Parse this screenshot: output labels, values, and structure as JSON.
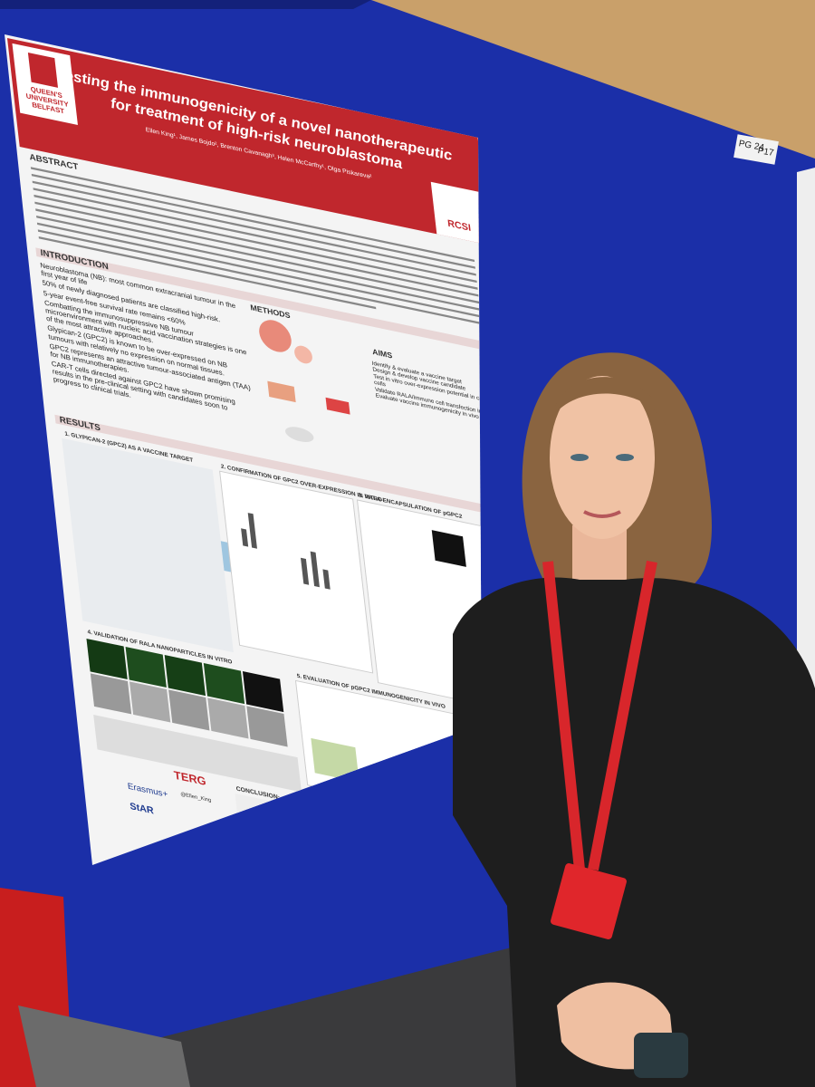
{
  "poster": {
    "institution_left": "QUEEN'S UNIVERSITY BELFAST",
    "title": [
      "Testing the immunogenicity of a novel nanotherapeutic",
      "for treatment of high-risk neuroblastoma"
    ],
    "authors": "Ellen King¹, James Bojdo², Brenton Cavanagh³, Helen McCarthy¹, Olga Piskareva²",
    "institution_right": "RCSI",
    "sections": {
      "abstract": "ABSTRACT",
      "introduction": "INTRODUCTION",
      "methods": "METHODS",
      "aims": "AIMS",
      "results": "RESULTS"
    },
    "intro_points": [
      "Neuroblastoma (NB): most common extracranial tumour in the first year of life",
      "50% of newly diagnosed patients are classified high-risk.",
      "5-year event-free survival rate remains <60%",
      "Combatting the immunosuppressive NB tumour microenvironment with nucleic acid vaccination strategies is one of the most attractive approaches.",
      "Glypican-2 (GPC2) is known to be over-expressed on NB tumours with relatively no expression on normal tissues.",
      "GPC2 represents an attractive tumour-associated antigen (TAA) for NB immunotherapies.",
      "CAR-T cells directed against GPC2 have shown promising results in the pre-clinical setting with candidates soon to progress to clinical trials."
    ],
    "aims": [
      "Identify & evaluate a vaccine target",
      "Design & develop vaccine candidate",
      "Test in vitro over-expression potential in cancer cells",
      "Validate RALA/immune cell transfection in vitro",
      "Evaluate vaccine immunogenicity in vivo"
    ],
    "results_headings": [
      "1. GLYPICAN-2 (GPC2) AS A VACCINE TARGET",
      "2. CONFIRMATION OF GPC2 OVER-EXPRESSION IN VITRO",
      "3. RALA-ENCAPSULATION OF pGPC2",
      "4. VALIDATION OF RALA NANOPARTICLES IN VITRO",
      "5. EVALUATION OF pGPC2 IMMUNOGENICITY IN VIVO"
    ],
    "conclusion": "CONCLUSION:",
    "logos": [
      "TERG",
      "Erasmus+",
      "StAR"
    ],
    "twitter": "@Ellen_King"
  },
  "board_label": [
    "PG 24",
    "P17"
  ]
}
